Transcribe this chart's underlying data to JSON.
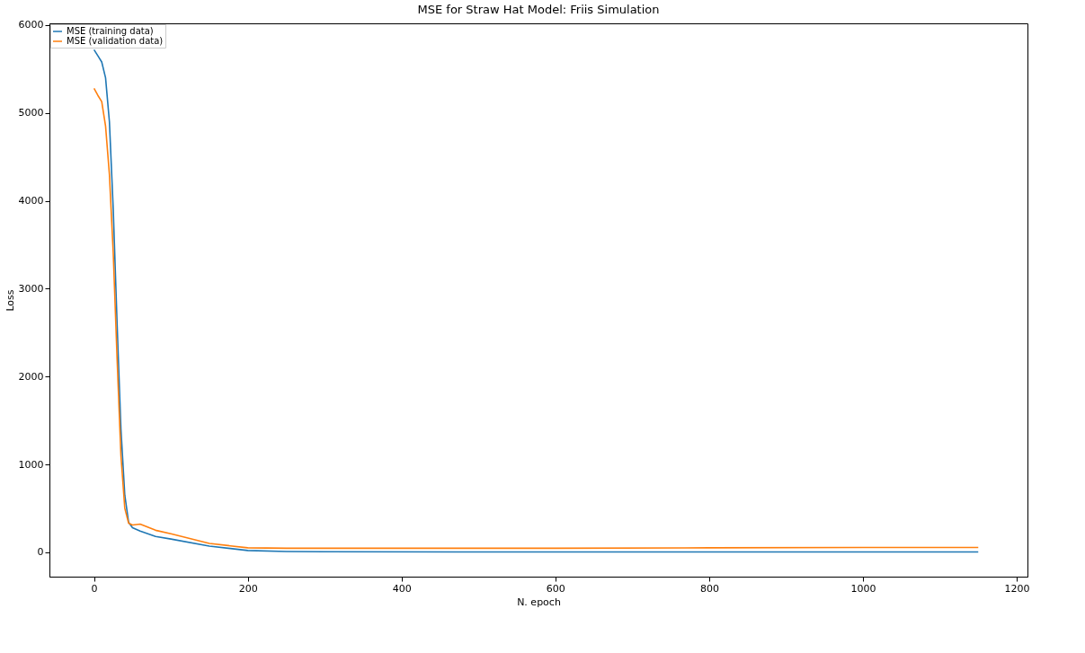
{
  "chart_data": {
    "type": "line",
    "title": "MSE for Straw Hat Model: Friis Simulation",
    "xlabel": "N. epoch",
    "ylabel": "Loss",
    "series": [
      {
        "name": "MSE (training data)",
        "color": "#1f77b4",
        "x": [
          0,
          5,
          10,
          15,
          20,
          25,
          30,
          35,
          40,
          45,
          50,
          60,
          80,
          100,
          150,
          200,
          250,
          300,
          600,
          900,
          1150
        ],
        "values": [
          5720,
          5650,
          5580,
          5400,
          4900,
          3900,
          2600,
          1400,
          650,
          340,
          280,
          240,
          180,
          150,
          70,
          20,
          8,
          5,
          3,
          3,
          3
        ]
      },
      {
        "name": "MSE (validation data)",
        "color": "#ff7f0e",
        "x": [
          0,
          5,
          10,
          15,
          20,
          25,
          30,
          35,
          40,
          45,
          50,
          60,
          80,
          100,
          150,
          200,
          250,
          300,
          600,
          800,
          1000,
          1150
        ],
        "values": [
          5280,
          5200,
          5130,
          4850,
          4300,
          3400,
          2200,
          1100,
          500,
          330,
          310,
          320,
          250,
          210,
          100,
          50,
          45,
          45,
          45,
          50,
          55,
          55
        ]
      }
    ],
    "xlim": [
      -58,
      1214
    ],
    "xticks": [
      0,
      200,
      400,
      600,
      800,
      1000,
      1200
    ],
    "ylim": [
      -278,
      6020
    ],
    "yticks": [
      0,
      1000,
      2000,
      3000,
      4000,
      5000,
      6000
    ],
    "legend": "top left",
    "grid": false,
    "marker": "none",
    "line_style": "solid"
  }
}
